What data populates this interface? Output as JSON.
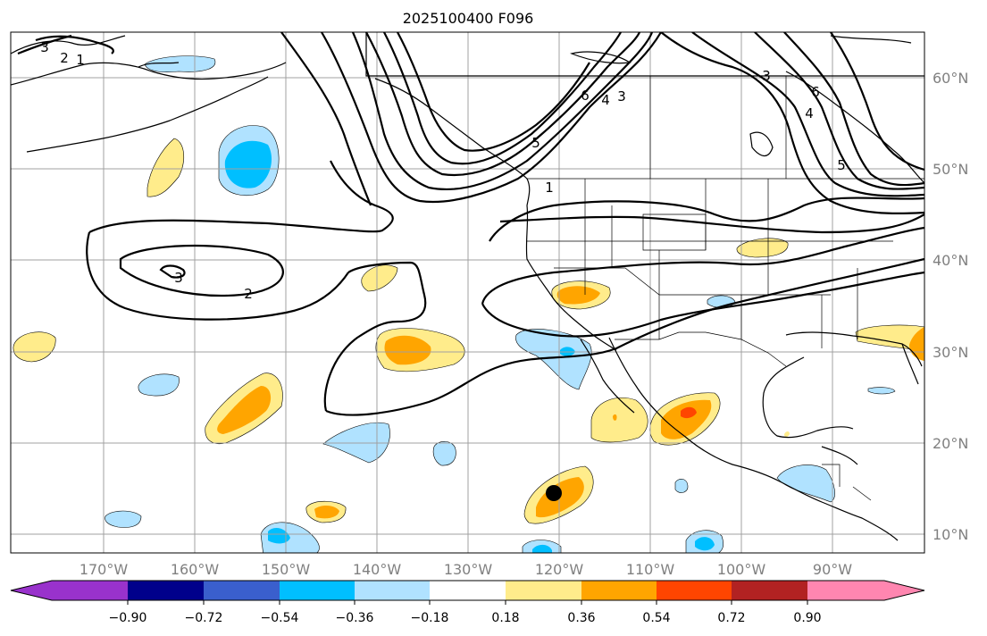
{
  "map": {
    "title": "2025100400 F096",
    "lon_labels": [
      "170°W",
      "160°W",
      "150°W",
      "140°W",
      "130°W",
      "120°W",
      "110°W",
      "100°W",
      "90°W"
    ],
    "lat_labels": [
      "60°N",
      "50°N",
      "40°N",
      "30°N",
      "20°N",
      "10°N"
    ],
    "contour_labels": [
      "3",
      "2",
      "1",
      "3",
      "2",
      "6",
      "4",
      "3",
      "5",
      "1",
      "3",
      "6",
      "4",
      "5"
    ],
    "colorbar": {
      "ticks": [
        "−0.90",
        "−0.72",
        "−0.54",
        "−0.36",
        "−0.18",
        "0.18",
        "0.36",
        "0.54",
        "0.72",
        "0.90"
      ],
      "colors": [
        "#9932cc",
        "#00008b",
        "#3a5fcd",
        "#00bfff",
        "#b0e2ff",
        "#ffffff",
        "#ffec8b",
        "#ffa500",
        "#ff4500",
        "#b22222",
        "#ff86b0"
      ]
    },
    "marker": "storm-location"
  }
}
